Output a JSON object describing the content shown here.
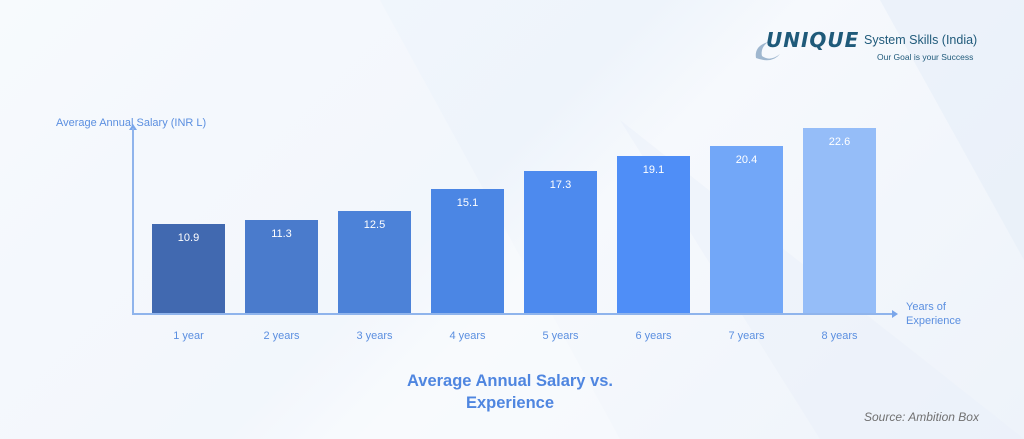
{
  "logo": {
    "brand": "UNIQUE",
    "name": "System Skills (India)",
    "tagline": "Our Goal is your Success"
  },
  "chart_data": {
    "type": "bar",
    "title": "Average Annual Salary vs. Experience",
    "title_lines": [
      "Average Annual Salary vs.",
      "Experience"
    ],
    "xlabel": "Years of Experience",
    "xlabel_lines": [
      "Years of",
      "Experience"
    ],
    "ylabel": "Average Annual Salary (INR L)",
    "categories": [
      "1 year",
      "2 years",
      "3 years",
      "4 years",
      "5 years",
      "6 years",
      "7 years",
      "8 years"
    ],
    "values": [
      10.9,
      11.3,
      12.5,
      15.1,
      17.3,
      19.1,
      20.4,
      22.6
    ],
    "value_labels": [
      "10.9",
      "11.3",
      "12.5",
      "15.1",
      "17.3",
      "19.1",
      "20.4",
      "22.6"
    ],
    "colors": [
      "#4169b0",
      "#4a7bcc",
      "#4c82d8",
      "#4b86e4",
      "#4d8aee",
      "#4f8ef7",
      "#72a7f8",
      "#95bdf8"
    ],
    "grid": false,
    "legend": null,
    "source": "Source: Ambition Box"
  }
}
